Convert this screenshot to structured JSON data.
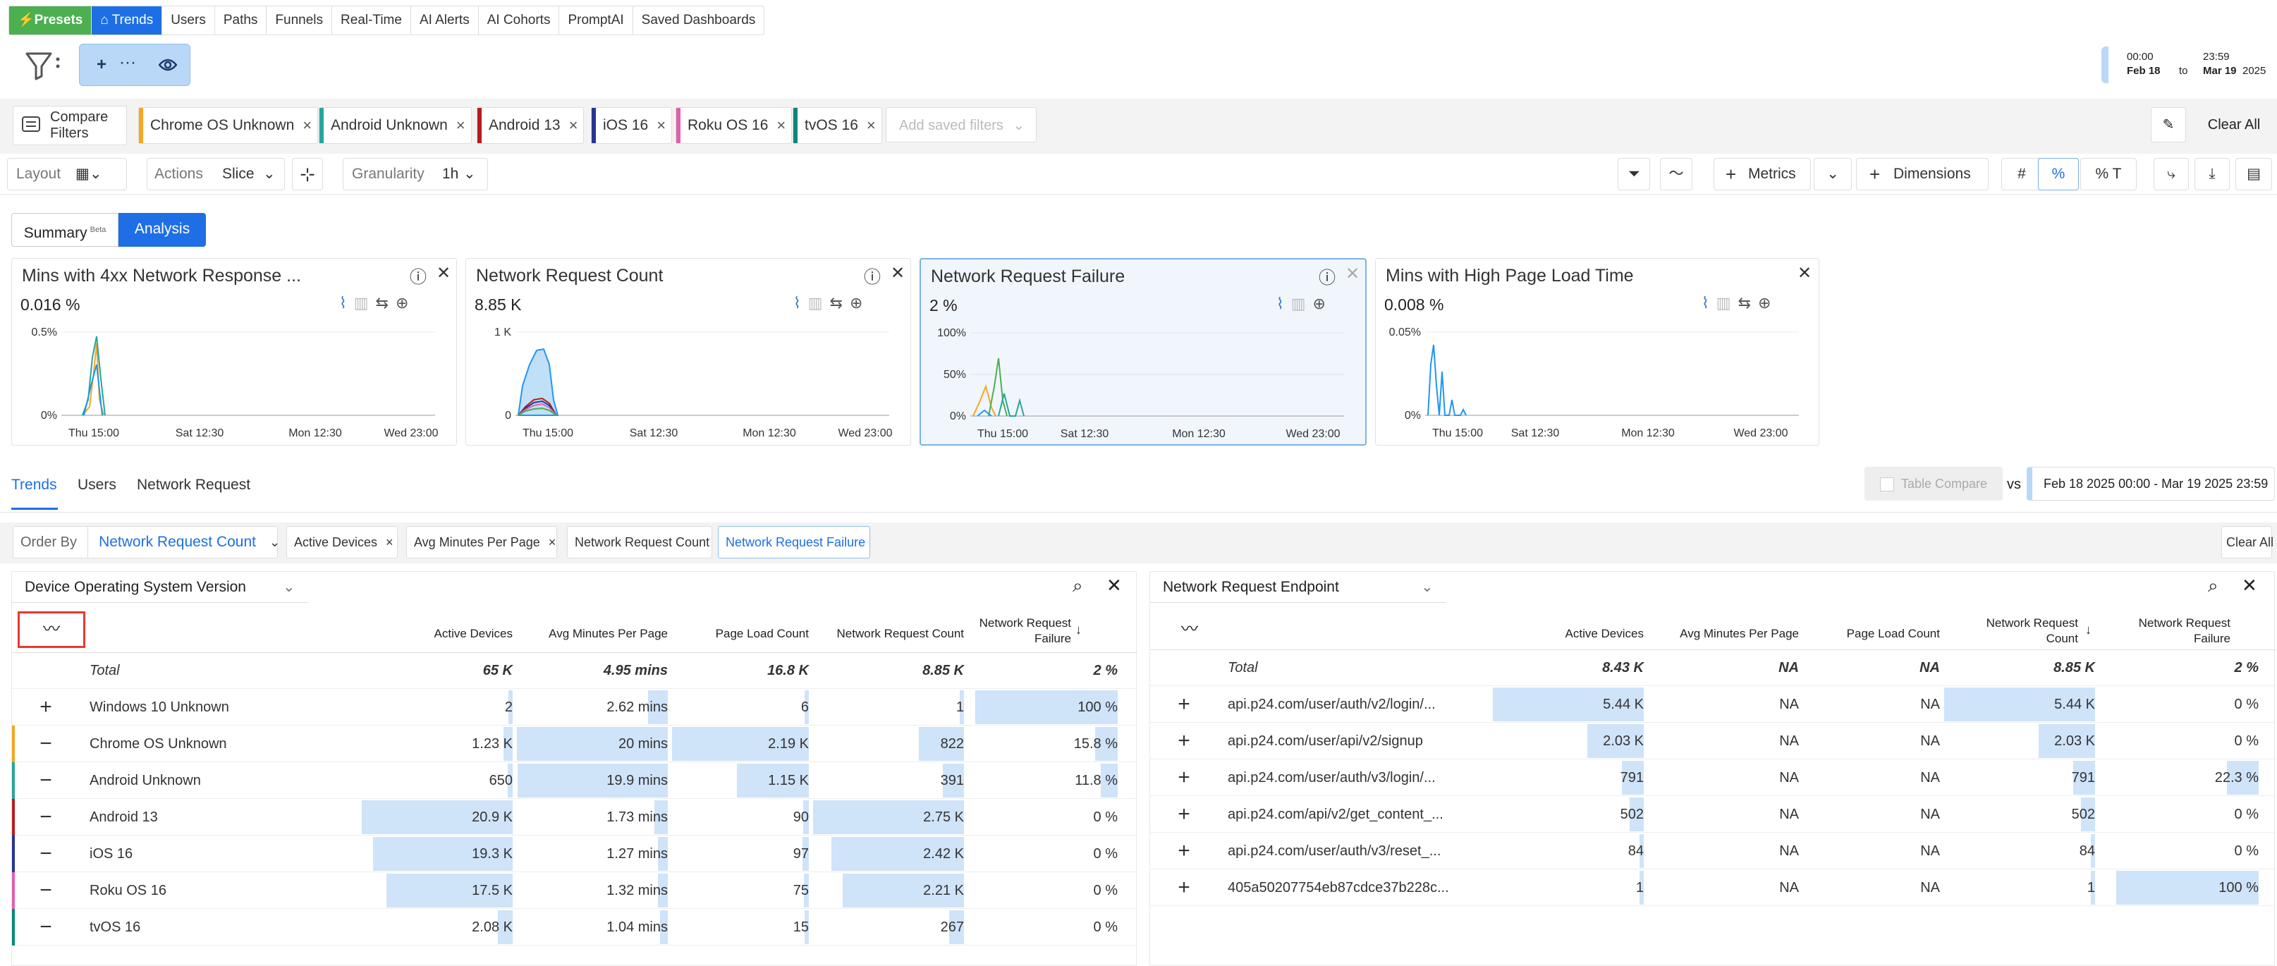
{
  "nav": {
    "tabs": [
      {
        "label": "Presets"
      },
      {
        "label": "Trends"
      },
      {
        "label": "Users"
      },
      {
        "label": "Paths"
      },
      {
        "label": "Funnels"
      },
      {
        "label": "Real-Time"
      },
      {
        "label": "AI Alerts"
      },
      {
        "label": "AI Cohorts"
      },
      {
        "label": "PromptAI"
      },
      {
        "label": "Saved Dashboards"
      }
    ]
  },
  "date_range": {
    "start_time": "00:00",
    "start_date": "Feb 18",
    "to": "to",
    "end_time": "23:59",
    "end_date": "Mar 19",
    "year": "2025"
  },
  "compare": {
    "button_label": "Compare Filters",
    "chips": [
      {
        "label": "Chrome OS Unknown",
        "color": "#f5a623"
      },
      {
        "label": "Android Unknown",
        "color": "#26a69a"
      },
      {
        "label": "Android 13",
        "color": "#b71c1c"
      },
      {
        "label": "iOS 16",
        "color": "#283593"
      },
      {
        "label": "Roku OS 16",
        "color": "#e060b0"
      },
      {
        "label": "tvOS 16",
        "color": "#00897b"
      }
    ],
    "add_saved_placeholder": "Add saved filters",
    "clear_all": "Clear All"
  },
  "toolbar": {
    "layout": "Layout",
    "actions": "Actions",
    "slice": "Slice",
    "granularity": "Granularity",
    "granularity_value": "1h",
    "metrics": "Metrics",
    "dimensions": "Dimensions",
    "hash": "#",
    "percent": "%",
    "percent_t": "% T"
  },
  "view_toggle": {
    "summary": "Summary",
    "beta": "Beta",
    "analysis": "Analysis"
  },
  "cards": [
    {
      "title": "Mins with 4xx Network Response ...",
      "value": "0.016 %",
      "y_ticks": [
        "0.5%",
        "0%"
      ],
      "x_ticks": [
        "Thu 15:00",
        "Sat 12:30",
        "Mon 12:30",
        "Wed 23:00"
      ]
    },
    {
      "title": "Network Request Count",
      "value": "8.85 K",
      "y_ticks": [
        "1 K",
        "0"
      ],
      "x_ticks": [
        "Thu 15:00",
        "Sat 12:30",
        "Mon 12:30",
        "Wed 23:00"
      ]
    },
    {
      "title": "Network Request Failure",
      "value": "2 %",
      "y_ticks": [
        "100%",
        "50%",
        "0%"
      ],
      "x_ticks": [
        "Thu 15:00",
        "Sat 12:30",
        "Mon 12:30",
        "Wed 23:00"
      ]
    },
    {
      "title": "Mins with High Page Load Time",
      "value": "0.008 %",
      "y_ticks": [
        "0.05%",
        "0%"
      ],
      "x_ticks": [
        "Thu 15:00",
        "Sat 12:30",
        "Mon 12:30",
        "Wed 23:00"
      ]
    }
  ],
  "bottom_tabs": [
    {
      "label": "Trends"
    },
    {
      "label": "Users"
    },
    {
      "label": "Network Request"
    }
  ],
  "table_compare": {
    "label": "Table Compare",
    "vs": "vs",
    "range": "Feb 18 2025 00:00 - Mar 19 2025 23:59"
  },
  "order": {
    "label": "Order By",
    "value": "Network Request Count",
    "chips": [
      {
        "label": "Active Devices"
      },
      {
        "label": "Avg Minutes Per Page"
      },
      {
        "label": "Network Request Count"
      },
      {
        "label": "Network Request Failure"
      }
    ],
    "clear_all": "Clear All"
  },
  "table_left": {
    "dimension": "Device Operating System Version",
    "headers": [
      "Active Devices",
      "Avg Minutes Per Page",
      "Page Load Count",
      "Network Request Count",
      "Network Request Failure"
    ],
    "total": {
      "name": "Total",
      "cells": [
        "65 K",
        "4.95 mins",
        "16.8 K",
        "8.85 K",
        "2 %"
      ]
    },
    "rows": [
      {
        "sign": "+",
        "name": "Windows 10 Unknown",
        "color": "",
        "cells": [
          "2",
          "2.62 mins",
          "6",
          "1",
          "100 %"
        ]
      },
      {
        "sign": "−",
        "name": "Chrome OS Unknown",
        "color": "#f5a623",
        "cells": [
          "1.23 K",
          "20 mins",
          "2.19 K",
          "822",
          "15.8 %"
        ]
      },
      {
        "sign": "−",
        "name": "Android Unknown",
        "color": "#26a69a",
        "cells": [
          "650",
          "19.9 mins",
          "1.15 K",
          "391",
          "11.8 %"
        ]
      },
      {
        "sign": "−",
        "name": "Android 13",
        "color": "#b71c1c",
        "cells": [
          "20.9 K",
          "1.73 mins",
          "90",
          "2.75 K",
          "0 %"
        ]
      },
      {
        "sign": "−",
        "name": "iOS 16",
        "color": "#283593",
        "cells": [
          "19.3 K",
          "1.27 mins",
          "97",
          "2.42 K",
          "0 %"
        ]
      },
      {
        "sign": "−",
        "name": "Roku OS 16",
        "color": "#e060b0",
        "cells": [
          "17.5 K",
          "1.32 mins",
          "75",
          "2.21 K",
          "0 %"
        ]
      },
      {
        "sign": "−",
        "name": "tvOS 16",
        "color": "#00897b",
        "cells": [
          "2.08 K",
          "1.04 mins",
          "15",
          "267",
          "0 %"
        ]
      }
    ]
  },
  "table_right": {
    "dimension": "Network Request Endpoint",
    "headers": [
      "Active Devices",
      "Avg Minutes Per Page",
      "Page Load Count",
      "Network Request Count",
      "Network Request Failure"
    ],
    "total": {
      "name": "Total",
      "cells": [
        "8.43 K",
        "NA",
        "NA",
        "8.85 K",
        "2 %"
      ]
    },
    "rows": [
      {
        "sign": "+",
        "name": "api.p24.com/user/auth/v2/login/...",
        "cells": [
          "5.44 K",
          "NA",
          "NA",
          "5.44 K",
          "0 %"
        ]
      },
      {
        "sign": "+",
        "name": "api.p24.com/user/api/v2/signup",
        "cells": [
          "2.03 K",
          "NA",
          "NA",
          "2.03 K",
          "0 %"
        ]
      },
      {
        "sign": "+",
        "name": "api.p24.com/user/auth/v3/login/...",
        "cells": [
          "791",
          "NA",
          "NA",
          "791",
          "22.3 %"
        ]
      },
      {
        "sign": "+",
        "name": "api.p24.com/api/v2/get_content_...",
        "cells": [
          "502",
          "NA",
          "NA",
          "502",
          "0 %"
        ]
      },
      {
        "sign": "+",
        "name": "api.p24.com/user/auth/v3/reset_...",
        "cells": [
          "84",
          "NA",
          "NA",
          "84",
          "0 %"
        ]
      },
      {
        "sign": "+",
        "name": "405a50207754eb87cdce37b228c...",
        "cells": [
          "1",
          "NA",
          "NA",
          "1",
          "100 %"
        ]
      }
    ]
  }
}
